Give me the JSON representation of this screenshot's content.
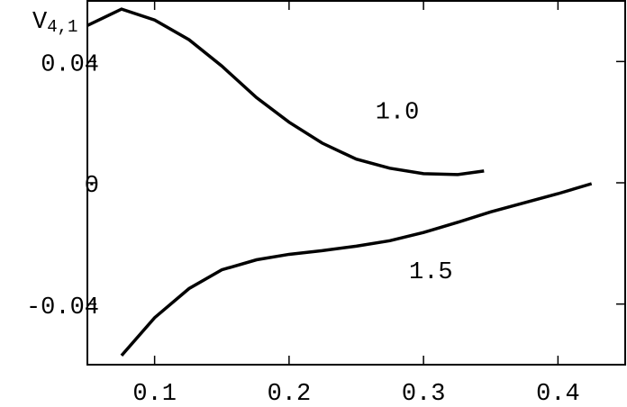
{
  "chart_data": {
    "type": "line",
    "y_label": {
      "base": "V",
      "sub": "4,1"
    },
    "xlim": [
      0.05,
      0.45
    ],
    "xticks": [
      0.1,
      0.2,
      0.3,
      0.4
    ],
    "ylim": [
      -0.06,
      0.06
    ],
    "yticks": [
      -0.04,
      0,
      0.04
    ],
    "series": [
      {
        "name": "1.0",
        "color": "#000000",
        "x": [
          0.05,
          0.0754,
          0.1,
          0.1256,
          0.15,
          0.1758,
          0.2,
          0.2246,
          0.25,
          0.2749,
          0.3,
          0.3254,
          0.345
        ],
        "values": [
          0.0519,
          0.0573,
          0.0537,
          0.0472,
          0.0385,
          0.0281,
          0.02,
          0.0131,
          0.0078,
          0.0048,
          0.003,
          0.0027,
          0.0039
        ]
      },
      {
        "name": "1.5",
        "color": "#000000",
        "x": [
          0.0754,
          0.1,
          0.1256,
          0.15,
          0.1758,
          0.2,
          0.2246,
          0.25,
          0.275,
          0.3,
          0.325,
          0.35,
          0.4,
          0.425
        ],
        "values": [
          -0.057,
          -0.0445,
          -0.0349,
          -0.0287,
          -0.0254,
          -0.0236,
          -0.0224,
          -0.0209,
          -0.0191,
          -0.0164,
          -0.0131,
          -0.0096,
          -0.0036,
          -0.0003
        ]
      }
    ],
    "annotations": [
      {
        "text": "1.0",
        "x": 0.2805,
        "y": 0.0233
      },
      {
        "text": "1.5",
        "x": 0.3055,
        "y": -0.0293
      }
    ]
  }
}
